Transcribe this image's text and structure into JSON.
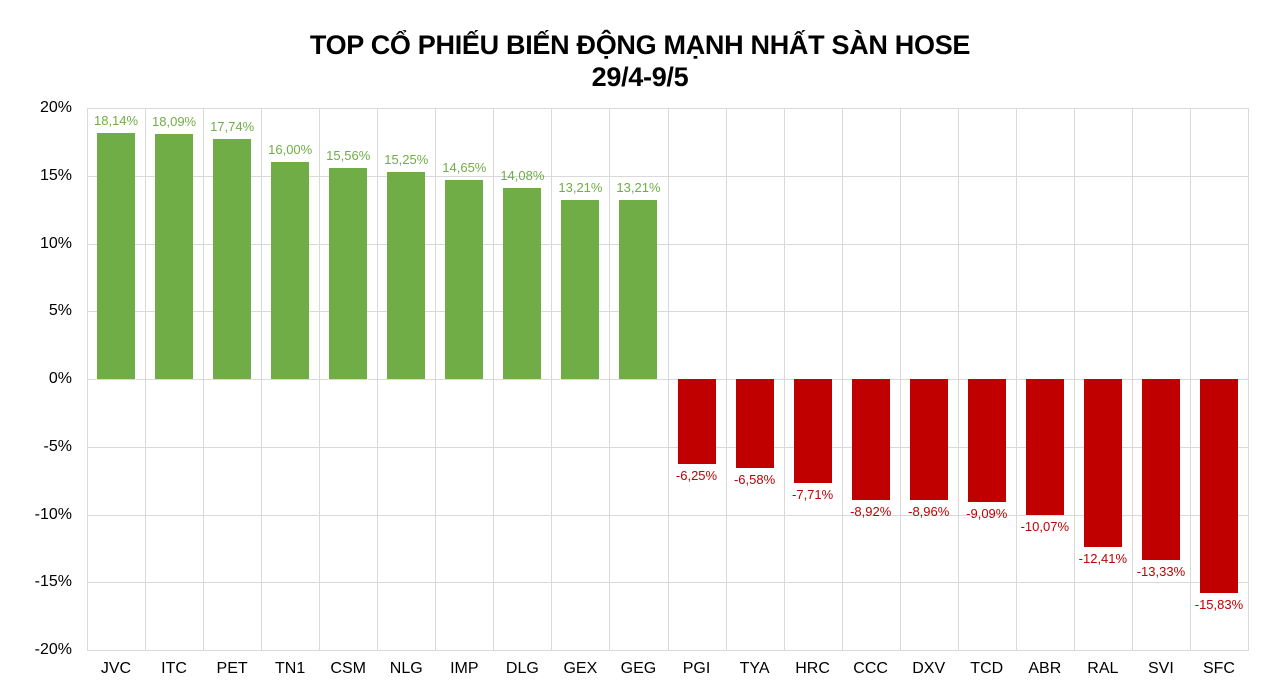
{
  "title_line1": "TOP CỔ PHIẾU BIẾN ĐỘNG MẠNH NHẤT SÀN HOSE",
  "title_line2": "29/4-9/5",
  "colors": {
    "positive": "#70ad47",
    "negative": "#c00000",
    "grid": "#d9d9d9"
  },
  "y_ticks": [
    "20%",
    "15%",
    "10%",
    "5%",
    "0%",
    "-5%",
    "-10%",
    "-15%",
    "-20%"
  ],
  "chart_data": {
    "type": "bar",
    "title": "TOP CỔ PHIẾU BIẾN ĐỘNG MẠNH NHẤT SÀN HOSE 29/4-9/5",
    "xlabel": "",
    "ylabel": "",
    "ylim": [
      -20,
      20
    ],
    "y_tick_step": 5,
    "grid": true,
    "legend": null,
    "categories": [
      "JVC",
      "ITC",
      "PET",
      "TN1",
      "CSM",
      "NLG",
      "IMP",
      "DLG",
      "GEX",
      "GEG",
      "PGI",
      "TYA",
      "HRC",
      "CCC",
      "DXV",
      "TCD",
      "ABR",
      "RAL",
      "SVI",
      "SFC"
    ],
    "values": [
      18.14,
      18.09,
      17.74,
      16.0,
      15.56,
      15.25,
      14.65,
      14.08,
      13.21,
      13.21,
      -6.25,
      -6.58,
      -7.71,
      -8.92,
      -8.96,
      -9.09,
      -10.07,
      -12.41,
      -13.33,
      -15.83
    ],
    "data_labels": [
      "18,14%",
      "18,09%",
      "17,74%",
      "16,00%",
      "15,56%",
      "15,25%",
      "14,65%",
      "14,08%",
      "13,21%",
      "13,21%",
      "-6,25%",
      "-6,58%",
      "-7,71%",
      "-8,92%",
      "-8,96%",
      "-9,09%",
      "-10,07%",
      "-12,41%",
      "-13,33%",
      "-15,83%"
    ]
  }
}
